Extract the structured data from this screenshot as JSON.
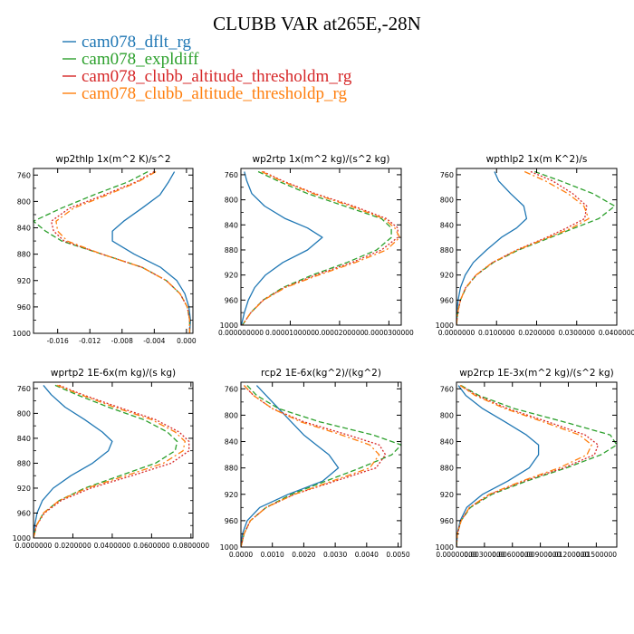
{
  "chart_data": {
    "type": "line",
    "title": "CLUBB VAR at265E,-28N",
    "legend_placement": "top-left",
    "series": [
      {
        "name": "cam078_dflt_rg",
        "color": "#1f77b4",
        "dash": "solid"
      },
      {
        "name": "cam078_expldiff",
        "color": "#2ca02c",
        "dash": "dash"
      },
      {
        "name": "cam078_clubb_altitude_thresholdm_rg",
        "color": "#d62728",
        "dash": "dot"
      },
      {
        "name": "cam078_clubb_altitude_thresholdp_rg",
        "color": "#ff7f0e",
        "dash": "dashdot"
      }
    ],
    "levels": [
      755,
      770,
      790,
      810,
      830,
      845,
      860,
      880,
      900,
      920,
      940,
      960,
      980,
      1000
    ],
    "ylim": [
      1000,
      750
    ],
    "yticks": [
      760,
      800,
      840,
      880,
      920,
      960,
      1000
    ],
    "panels": [
      {
        "title": "wp2thlp   1x(m^2 K)/s^2",
        "xlim": [
          -0.019,
          0.0008
        ],
        "xticks": [
          -0.016,
          -0.012,
          -0.008,
          -0.004,
          0.0
        ],
        "xtick_labels": [
          "-0.016",
          "-0.012",
          "-0.008",
          "-0.004",
          "0.000"
        ],
        "values": [
          [
            -0.0015,
            -0.0022,
            -0.0033,
            -0.0055,
            -0.0078,
            -0.0092,
            -0.0092,
            -0.0065,
            -0.0032,
            -0.0012,
            -0.0002,
            0.0003,
            0.0005,
            0.0004
          ],
          [
            -0.0048,
            -0.0072,
            -0.0115,
            -0.0155,
            -0.019,
            -0.0175,
            -0.0155,
            -0.0105,
            -0.0055,
            -0.0025,
            -0.0008,
            0.0001,
            0.0004,
            0.0004
          ],
          [
            -0.004,
            -0.0062,
            -0.0102,
            -0.0145,
            -0.0168,
            -0.0165,
            -0.0152,
            -0.0105,
            -0.0055,
            -0.0025,
            -0.0008,
            0.0001,
            0.0004,
            0.0004
          ],
          [
            -0.0038,
            -0.006,
            -0.0098,
            -0.014,
            -0.0162,
            -0.016,
            -0.0148,
            -0.0105,
            -0.0055,
            -0.0025,
            -0.0008,
            0.0001,
            0.0004,
            0.0004
          ]
        ]
      },
      {
        "title": "wp2rtp   1x(m^2 kg)/(s^2 kg)",
        "xlim": [
          0.0,
          3.25e-05
        ],
        "xticks": [
          0.0,
          1e-05,
          2e-05,
          3e-05
        ],
        "xtick_labels": [
          "0.000000000",
          "0.0000100000",
          "0.0000200000",
          "0.0000300000"
        ],
        "values": [
          [
            7e-07,
            1.2e-06,
            2.2e-06,
            4.8e-06,
            9e-06,
            1.35e-05,
            1.65e-05,
            1.35e-05,
            8.5e-06,
            5e-06,
            2.8e-06,
            1.5e-06,
            7e-07,
            1e-07
          ],
          [
            3.5e-06,
            7.5e-06,
            1.35e-05,
            2.1e-05,
            2.85e-05,
            3.05e-05,
            3.05e-05,
            2.75e-05,
            2.15e-05,
            1.45e-05,
            8.5e-06,
            4.5e-06,
            2e-06,
            3e-07
          ],
          [
            4.5e-06,
            8.5e-06,
            1.5e-05,
            2.28e-05,
            2.95e-05,
            3.18e-05,
            3.18e-05,
            2.85e-05,
            2.25e-05,
            1.52e-05,
            8.8e-06,
            4.5e-06,
            2e-06,
            3e-07
          ],
          [
            4.2e-06,
            8.2e-06,
            1.46e-05,
            2.22e-05,
            2.9e-05,
            3.12e-05,
            3.22e-05,
            2.95e-05,
            2.32e-05,
            1.58e-05,
            9e-06,
            4.6e-06,
            2e-06,
            3e-07
          ]
        ]
      },
      {
        "title": "wpthlp2   1x(m K^2)/s",
        "xlim": [
          0.0,
          0.04
        ],
        "xticks": [
          0.0,
          0.01,
          0.02,
          0.03,
          0.04
        ],
        "xtick_labels": [
          "0.0000000",
          "0.0100000",
          "0.0200000",
          "0.0300000",
          "0.0400000"
        ],
        "values": [
          [
            0.0095,
            0.0105,
            0.0135,
            0.0168,
            0.0175,
            0.015,
            0.0112,
            0.0075,
            0.0042,
            0.0022,
            0.001,
            0.0004,
            0.0001,
            0.0
          ],
          [
            0.0195,
            0.026,
            0.034,
            0.0395,
            0.0355,
            0.0295,
            0.0235,
            0.0155,
            0.0092,
            0.005,
            0.0024,
            0.001,
            0.0003,
            0.0
          ],
          [
            0.0185,
            0.024,
            0.029,
            0.0325,
            0.032,
            0.0275,
            0.0225,
            0.015,
            0.009,
            0.0049,
            0.0023,
            0.001,
            0.0003,
            0.0
          ],
          [
            0.017,
            0.0222,
            0.0278,
            0.0318,
            0.033,
            0.0288,
            0.023,
            0.0152,
            0.009,
            0.0049,
            0.0023,
            0.001,
            0.0003,
            0.0
          ]
        ]
      },
      {
        "title": "wprtp2   1E-6x(m kg)/(s kg)",
        "xlim": [
          0.0,
          0.081
        ],
        "xticks": [
          0.0,
          0.02,
          0.04,
          0.06,
          0.08
        ],
        "xtick_labels": [
          "0.0000000",
          "0.0200000",
          "0.0400000",
          "0.0600000",
          "0.0800000"
        ],
        "values": [
          [
            0.005,
            0.009,
            0.016,
            0.026,
            0.035,
            0.04,
            0.038,
            0.03,
            0.019,
            0.01,
            0.0045,
            0.0018,
            0.0006,
            0.0
          ],
          [
            0.011,
            0.022,
            0.038,
            0.056,
            0.068,
            0.073,
            0.072,
            0.062,
            0.044,
            0.026,
            0.013,
            0.005,
            0.0015,
            0.0
          ],
          [
            0.013,
            0.025,
            0.043,
            0.062,
            0.074,
            0.079,
            0.079,
            0.07,
            0.05,
            0.029,
            0.014,
            0.0055,
            0.0015,
            0.0
          ],
          [
            0.012,
            0.024,
            0.041,
            0.06,
            0.072,
            0.077,
            0.076,
            0.066,
            0.047,
            0.027,
            0.013,
            0.005,
            0.0015,
            0.0
          ]
        ]
      },
      {
        "title": "rcp2   1E-6x(kg^2)/(kg^2)",
        "xlim": [
          0.0,
          0.0051
        ],
        "xticks": [
          0.0,
          0.001,
          0.002,
          0.003,
          0.004,
          0.005
        ],
        "xtick_labels": [
          "0.0000",
          "0.0010",
          "0.0020",
          "0.0030",
          "0.0040",
          "0.0050"
        ],
        "values": [
          [
            0.0005,
            0.0008,
            0.0012,
            0.0016,
            0.002,
            0.0024,
            0.0028,
            0.0031,
            0.0026,
            0.0015,
            0.0006,
            0.0002,
            5e-05,
            0.0
          ],
          [
            0.0002,
            0.0005,
            0.0012,
            0.0025,
            0.0042,
            0.0051,
            0.0048,
            0.0038,
            0.0027,
            0.0016,
            0.0008,
            0.0003,
            0.0001,
            0.0
          ],
          [
            0.0001,
            0.0004,
            0.001,
            0.002,
            0.0034,
            0.0044,
            0.0046,
            0.0043,
            0.003,
            0.0017,
            0.0008,
            0.0003,
            0.0001,
            0.0
          ],
          [
            0.0001,
            0.0004,
            0.001,
            0.0019,
            0.0032,
            0.0041,
            0.0044,
            0.0041,
            0.0029,
            0.0017,
            0.0008,
            0.0003,
            0.0001,
            0.0
          ]
        ]
      },
      {
        "title": "wp2rcp   1E-3x(m^2 kg)/(s^2 kg)",
        "xlim": [
          0.0,
          0.0172
        ],
        "xticks": [
          0.0,
          0.003,
          0.006,
          0.009,
          0.012,
          0.015
        ],
        "xtick_labels": [
          "0.00000000",
          "0.00300000",
          "0.00600000",
          "0.00900000",
          "0.01200000",
          "0.01500000"
        ],
        "values": [
          [
            0.0002,
            0.001,
            0.0028,
            0.0052,
            0.0075,
            0.0088,
            0.0088,
            0.0078,
            0.0055,
            0.0028,
            0.0011,
            0.0004,
            0.0001,
            0.0
          ],
          [
            0.0005,
            0.0024,
            0.0062,
            0.0115,
            0.0165,
            0.0172,
            0.0155,
            0.0118,
            0.0075,
            0.0038,
            0.0015,
            0.0005,
            0.0001,
            0.0
          ],
          [
            0.0004,
            0.0022,
            0.0055,
            0.0098,
            0.0138,
            0.0152,
            0.0148,
            0.0115,
            0.0072,
            0.0036,
            0.0014,
            0.0005,
            0.0001,
            0.0
          ],
          [
            0.0004,
            0.002,
            0.0052,
            0.0093,
            0.0132,
            0.0145,
            0.014,
            0.011,
            0.007,
            0.0035,
            0.0014,
            0.0005,
            0.0001,
            0.0
          ]
        ]
      }
    ]
  }
}
